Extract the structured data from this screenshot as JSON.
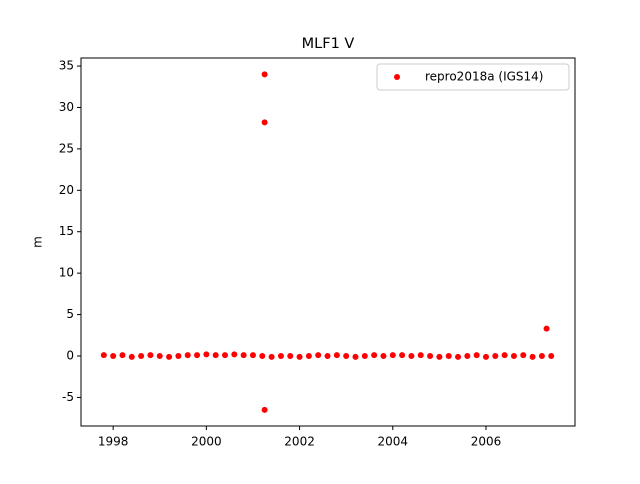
{
  "chart_data": {
    "type": "scatter",
    "title": "MLF1 V",
    "y_label": "m",
    "series": [
      {
        "name": "repro2018a (IGS14)",
        "color": "#ff0000",
        "x": [
          1997.8,
          1998,
          1998.2,
          1998.4,
          1998.6,
          1998.8,
          1999,
          1999.2,
          1999.4,
          1999.6,
          1999.8,
          2000,
          2000.2,
          2000.4,
          2000.6,
          2000.8,
          2001,
          2001.2,
          2001.4,
          2001.6,
          2001.8,
          2002,
          2002.2,
          2002.4,
          2002.6,
          2002.8,
          2003,
          2003.2,
          2003.4,
          2003.6,
          2003.8,
          2004,
          2004.2,
          2004.4,
          2004.6,
          2004.8,
          2005,
          2005.2,
          2005.4,
          2005.6,
          2005.8,
          2006,
          2006.2,
          2006.4,
          2006.6,
          2006.8,
          2007,
          2007.2,
          2007.4,
          2001.25,
          2001.25,
          2001.25,
          2007.3
        ],
        "values": [
          0.1,
          0,
          0.1,
          -0.1,
          0,
          0.1,
          0,
          -0.1,
          0,
          0.1,
          0.1,
          0.2,
          0.1,
          0.1,
          0.2,
          0.1,
          0.1,
          0,
          -0.1,
          0,
          0,
          -0.1,
          0,
          0.1,
          0,
          0.1,
          0,
          -0.1,
          0,
          0.1,
          0,
          0.1,
          0.1,
          0,
          0.1,
          0,
          -0.1,
          0,
          -0.1,
          0,
          0.1,
          -0.1,
          0,
          0.1,
          0,
          0.1,
          -0.1,
          0,
          0,
          34,
          28.2,
          -6.5,
          3.3
        ]
      }
    ],
    "xlim": [
      1997.31,
      2007.91
    ],
    "xticks": [
      1998,
      2000,
      2002,
      2004,
      2006
    ],
    "ylim": [
      -8.45,
      35.97
    ],
    "yticks": [
      -5,
      0,
      5,
      10,
      15,
      20,
      25,
      30,
      35
    ],
    "legend": "upper right"
  }
}
